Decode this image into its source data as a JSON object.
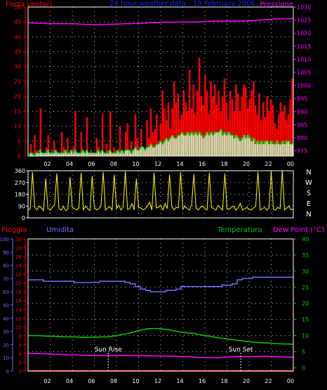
{
  "colors": {
    "background": "#000000",
    "axis": "#ffffff",
    "grid": "#bfbfbf",
    "wind": "#ff0000",
    "gust": "#ff0000",
    "pressure": "#ff00ff",
    "direction": "#ffff00",
    "rain": "#ff0000",
    "humidity": "#6f6fff",
    "temperature": "#00cc00",
    "dew_point": "#ff00ff",
    "gust_fill": "#ccffcc",
    "title": "#2222ff",
    "sun_marker": "#ffffff"
  },
  "chart_data": [
    {
      "type": "bar",
      "title": "24 hour weather data - 19 February 2006",
      "left_label": "Forza vento()",
      "right_label": "Pressione",
      "x_ticks": [
        "02",
        "04",
        "06",
        "08",
        "10",
        "12",
        "14",
        "16",
        "18",
        "20",
        "22",
        "00"
      ],
      "y_left_ticks": [
        0,
        5,
        10,
        15,
        20,
        25,
        30,
        35,
        40,
        45,
        50
      ],
      "y_left_range": [
        0,
        50
      ],
      "y_right_ticks": [
        975,
        980,
        985,
        990,
        995,
        1000,
        1005,
        1010,
        1015,
        1020,
        1025,
        1030
      ],
      "y_right_range": [
        973,
        1030
      ],
      "grid": true,
      "series": [
        {
          "name": "Wind",
          "kind": "bars",
          "values": [
            0,
            4,
            0,
            7,
            2,
            0,
            16,
            1,
            0,
            3,
            7,
            0,
            2,
            5,
            0,
            1,
            0,
            8,
            3,
            0,
            6,
            0,
            2,
            3,
            15,
            1,
            0,
            8,
            2,
            0,
            13,
            0,
            2,
            1,
            0,
            6,
            3,
            0,
            14,
            0,
            4,
            2,
            15,
            0,
            3,
            2,
            0,
            10,
            0,
            2,
            8,
            11,
            0,
            5,
            2,
            14,
            6,
            3,
            9,
            0,
            2,
            12,
            6,
            16,
            8,
            9,
            14,
            5,
            11,
            22,
            16,
            12,
            18,
            9,
            16,
            25,
            18,
            21,
            12,
            14,
            22,
            18,
            15,
            29,
            16,
            24,
            14,
            22,
            33,
            20,
            17,
            27,
            22,
            14,
            25,
            20,
            24,
            17,
            22,
            15,
            20,
            26,
            18,
            12,
            22,
            19,
            15,
            24,
            21,
            15,
            20,
            24,
            23,
            16,
            19,
            22,
            25,
            17,
            14,
            21,
            12,
            18,
            13,
            20,
            15,
            19,
            17,
            11,
            9,
            14,
            18,
            15,
            17,
            12,
            14,
            19,
            26
          ]
        },
        {
          "name": "Gust",
          "kind": "line",
          "values": [
            0,
            1,
            1,
            0,
            1,
            1,
            2,
            1,
            1,
            1,
            2,
            1,
            1,
            1,
            2,
            1,
            1,
            1,
            1,
            2,
            1,
            1,
            2,
            1,
            2,
            1,
            1,
            1,
            2,
            1,
            2,
            1,
            1,
            1,
            1,
            1,
            2,
            1,
            2,
            1,
            1,
            1,
            2,
            1,
            1,
            1,
            2,
            1,
            2,
            1,
            2,
            2,
            2,
            1,
            2,
            3,
            2,
            2,
            3,
            3,
            2,
            3,
            3,
            4,
            3,
            3,
            4,
            4,
            5,
            4,
            5,
            6,
            5,
            6,
            7,
            6,
            6,
            7,
            7,
            8,
            7,
            7,
            8,
            7,
            8,
            7,
            8,
            7,
            8,
            7,
            6,
            7,
            8,
            7,
            8,
            7,
            8,
            8,
            8,
            9,
            7,
            8,
            7,
            8,
            7,
            7,
            6,
            7,
            6,
            5,
            6,
            7,
            6,
            7,
            6,
            5,
            6,
            4,
            5,
            4,
            5,
            4,
            5,
            5,
            4,
            5,
            4,
            4,
            5,
            4,
            4,
            5,
            4,
            5,
            5,
            4,
            4
          ]
        },
        {
          "name": "Pressure",
          "kind": "line",
          "axis": "right",
          "values": [
            1024,
            1023.9,
            1023.8,
            1023.7,
            1023.6,
            1023.6,
            1023.6,
            1023.6,
            1023.6,
            1023.5,
            1023.4,
            1023.3,
            1023.2,
            1023.3,
            1023.4,
            1023.4,
            1023.5,
            1023.6,
            1023.6,
            1023.7,
            1023.8,
            1023.9,
            1024,
            1024,
            1024.2,
            1024.2,
            1024.2,
            1024.3,
            1024.3,
            1024.3,
            1024.3,
            1024.4,
            1024.5,
            1024.6,
            1024.6,
            1024.6,
            1024.6,
            1024.6,
            1024.7,
            1024.7,
            1024.8,
            1025,
            1025.2,
            1025.3,
            1025.4,
            1025.5,
            1025.5,
            1025.6
          ]
        }
      ]
    },
    {
      "type": "line",
      "left_ticks": [
        0,
        90,
        180,
        270,
        360
      ],
      "y_range": [
        0,
        360
      ],
      "right_letters": [
        "N",
        "W",
        "S",
        "E",
        "N"
      ],
      "x_ticks": [
        "02",
        "04",
        "06",
        "08",
        "10",
        "12",
        "14",
        "16",
        "18",
        "20",
        "22",
        "00"
      ],
      "grid": true,
      "series": [
        {
          "name": "Direction",
          "values": [
            60,
            70,
            350,
            80,
            60,
            90,
            75,
            55,
            300,
            70,
            60,
            80,
            100,
            340,
            70,
            60,
            90,
            55,
            65,
            310,
            80,
            70,
            60,
            75,
            345,
            60,
            90,
            70,
            55,
            320,
            80,
            60,
            70,
            90,
            350,
            60,
            75,
            85,
            60,
            330,
            70,
            95,
            60,
            80,
            355,
            65,
            70,
            110,
            60,
            300,
            80,
            75,
            60,
            70,
            90,
            120,
            60,
            345,
            75,
            80,
            95,
            60,
            110,
            70,
            330,
            90,
            60,
            80,
            75,
            350,
            65,
            90,
            70,
            60,
            100,
            335,
            75,
            60,
            80,
            90,
            70,
            60,
            345,
            80,
            70,
            60,
            95,
            75,
            60,
            340,
            70,
            65,
            80,
            90,
            60,
            75,
            110,
            60,
            70,
            80,
            65,
            60,
            75,
            90,
            350,
            60,
            70,
            80,
            60,
            75,
            355,
            65,
            60,
            80,
            70,
            360,
            60,
            75,
            90,
            60,
            70
          ]
        }
      ]
    },
    {
      "type": "line",
      "left_label_1": "Pioggia",
      "left_label_2": "Umidita",
      "right_label_1": "Temperatura",
      "right_label_2": "Dew Point (°C)",
      "outer_left_ticks": [
        0,
        10,
        20,
        30,
        40,
        50,
        60,
        70,
        80,
        90,
        100
      ],
      "inner_left_ticks": [
        0,
        2,
        4,
        6,
        8,
        10,
        12,
        14,
        16,
        18,
        20,
        22,
        24,
        26,
        28,
        30
      ],
      "right_ticks": [
        0,
        5,
        10,
        15,
        20,
        25,
        30,
        35,
        40
      ],
      "x_ticks": [
        "02",
        "04",
        "06",
        "08",
        "10",
        "12",
        "14",
        "16",
        "18",
        "20",
        "22",
        "00"
      ],
      "temp_range": [
        -1,
        40
      ],
      "humidity_range": [
        0,
        100
      ],
      "grid": true,
      "annotations": [
        {
          "label": "Sun Rise",
          "x_hour": 7.25
        },
        {
          "label": "Sun Set",
          "x_hour": 19.25
        }
      ],
      "series": [
        {
          "name": "Humidita",
          "values": [
            69,
            69,
            69,
            68,
            68,
            68,
            68,
            68,
            68,
            67,
            67,
            67,
            67,
            67,
            68,
            68,
            68,
            68,
            68,
            67,
            66,
            64,
            62,
            61,
            60,
            60,
            60,
            61,
            61,
            62,
            64,
            64,
            64,
            64,
            64,
            64,
            64,
            64,
            65,
            65,
            66,
            69,
            70,
            70,
            71,
            71,
            71,
            71,
            71,
            71,
            71,
            71
          ]
        },
        {
          "name": "Temperatura",
          "values": [
            10,
            10,
            10,
            9.9,
            9.8,
            9.8,
            9.7,
            9.6,
            9.6,
            9.6,
            9.5,
            9.5,
            9.5,
            9.5,
            9.6,
            9.6,
            9.8,
            10,
            10.3,
            10.6,
            11,
            11.4,
            11.8,
            12.1,
            12.2,
            12.2,
            12,
            11.8,
            11.5,
            11.2,
            11,
            10.8,
            10.6,
            10.3,
            10,
            9.8,
            9.5,
            9.2,
            9,
            8.8,
            8.6,
            8.4,
            8.2,
            8,
            7.9,
            7.8,
            7.7,
            7.6,
            7.5,
            7.4,
            7.4,
            7.3
          ]
        },
        {
          "name": "Dew Point",
          "values": [
            4.5,
            4.5,
            4.4,
            4.4,
            4.3,
            4.2,
            4.2,
            4.1,
            4,
            4,
            3.9,
            3.9,
            3.8,
            3.8,
            3.8,
            3.8,
            3.8,
            3.8,
            3.8,
            3.8,
            3.8,
            3.7,
            3.7,
            3.7,
            3.7,
            3.7,
            3.6,
            3.6,
            3.6,
            3.5,
            3.5,
            3.4,
            3.3,
            3.2,
            3.2,
            3.1,
            3.1,
            3.2,
            3.3,
            3.4,
            3.5,
            3.5,
            3.5,
            3.5,
            3.5,
            3.6,
            3.6,
            3.5,
            3.4,
            3.4,
            3.3,
            3.3
          ]
        },
        {
          "name": "Pioggia",
          "values": [
            0,
            0,
            0,
            0,
            0,
            0,
            0,
            0,
            0,
            0,
            0,
            0
          ]
        }
      ]
    }
  ]
}
